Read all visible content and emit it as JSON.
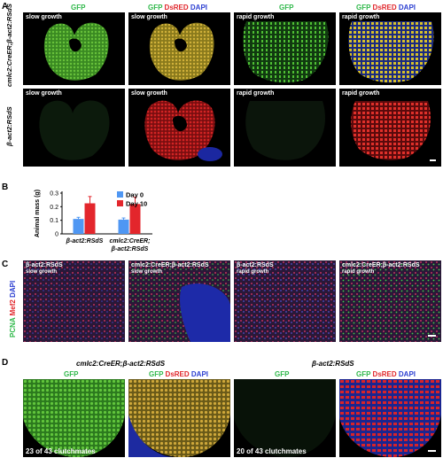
{
  "panelA": {
    "letter": "A",
    "headers": [
      {
        "gfp": "GFP",
        "ds": "",
        "dapi": ""
      },
      {
        "gfp": "GFP",
        "ds": "DsRED",
        "dapi": "DAPI"
      },
      {
        "gfp": "GFP",
        "ds": "",
        "dapi": ""
      },
      {
        "gfp": "GFP",
        "ds": "DsRED",
        "dapi": "DAPI"
      }
    ],
    "row_labels": [
      "cmlc2:CreER;β-act2:RSdS",
      "β-act2:RSdS"
    ],
    "tile_labels": [
      "slow growth",
      "slow growth",
      "rapid growth",
      "rapid growth"
    ]
  },
  "panelB": {
    "letter": "B",
    "chart_data": {
      "type": "bar",
      "categories": [
        "β-act2:RSdS",
        "cmlc2:CreER; β-act2:RSdS"
      ],
      "series": [
        {
          "name": "Day 0",
          "values": [
            0.11,
            0.105
          ],
          "errors": [
            0.012,
            0.012
          ],
          "color": "#4f97f3"
        },
        {
          "name": "Day 10",
          "values": [
            0.225,
            0.22
          ],
          "errors": [
            0.05,
            0.05
          ],
          "color": "#e3262c"
        }
      ],
      "ylabel": "Animal mass (g)",
      "ylim": [
        0,
        0.3
      ],
      "yticks": [
        "0",
        "0.1",
        "0.2",
        "0.3"
      ],
      "legend_position": "top-right"
    }
  },
  "panelC": {
    "letter": "C",
    "side_label": {
      "pcna": "PCNA",
      "mef2": "Mef2",
      "dapi": "DAPI"
    },
    "tiles": [
      {
        "genotype": "β-act2:RSdS",
        "growth": "slow growth"
      },
      {
        "genotype": "cmlc2:CreER;β-act2:RSdS",
        "growth": "slow growth"
      },
      {
        "genotype": "β-act2:RSdS",
        "growth": "rapid growth"
      },
      {
        "genotype": "cmlc2:CreER;β-act2:RSdS",
        "growth": "rapid growth"
      }
    ]
  },
  "panelD": {
    "letter": "D",
    "titles": [
      "cmlc2:CreER;β-act2:RSdS",
      "β-act2:RSdS"
    ],
    "headers": [
      {
        "gfp": "GFP",
        "ds": "",
        "dapi": ""
      },
      {
        "gfp": "GFP",
        "ds": "DsRED",
        "dapi": "DAPI"
      },
      {
        "gfp": "GFP",
        "ds": "",
        "dapi": ""
      },
      {
        "gfp": "GFP",
        "ds": "DsRED",
        "dapi": "DAPI"
      }
    ],
    "notes": [
      "23 of 43 clutchmates",
      "20 of 43 clutchmates"
    ]
  }
}
